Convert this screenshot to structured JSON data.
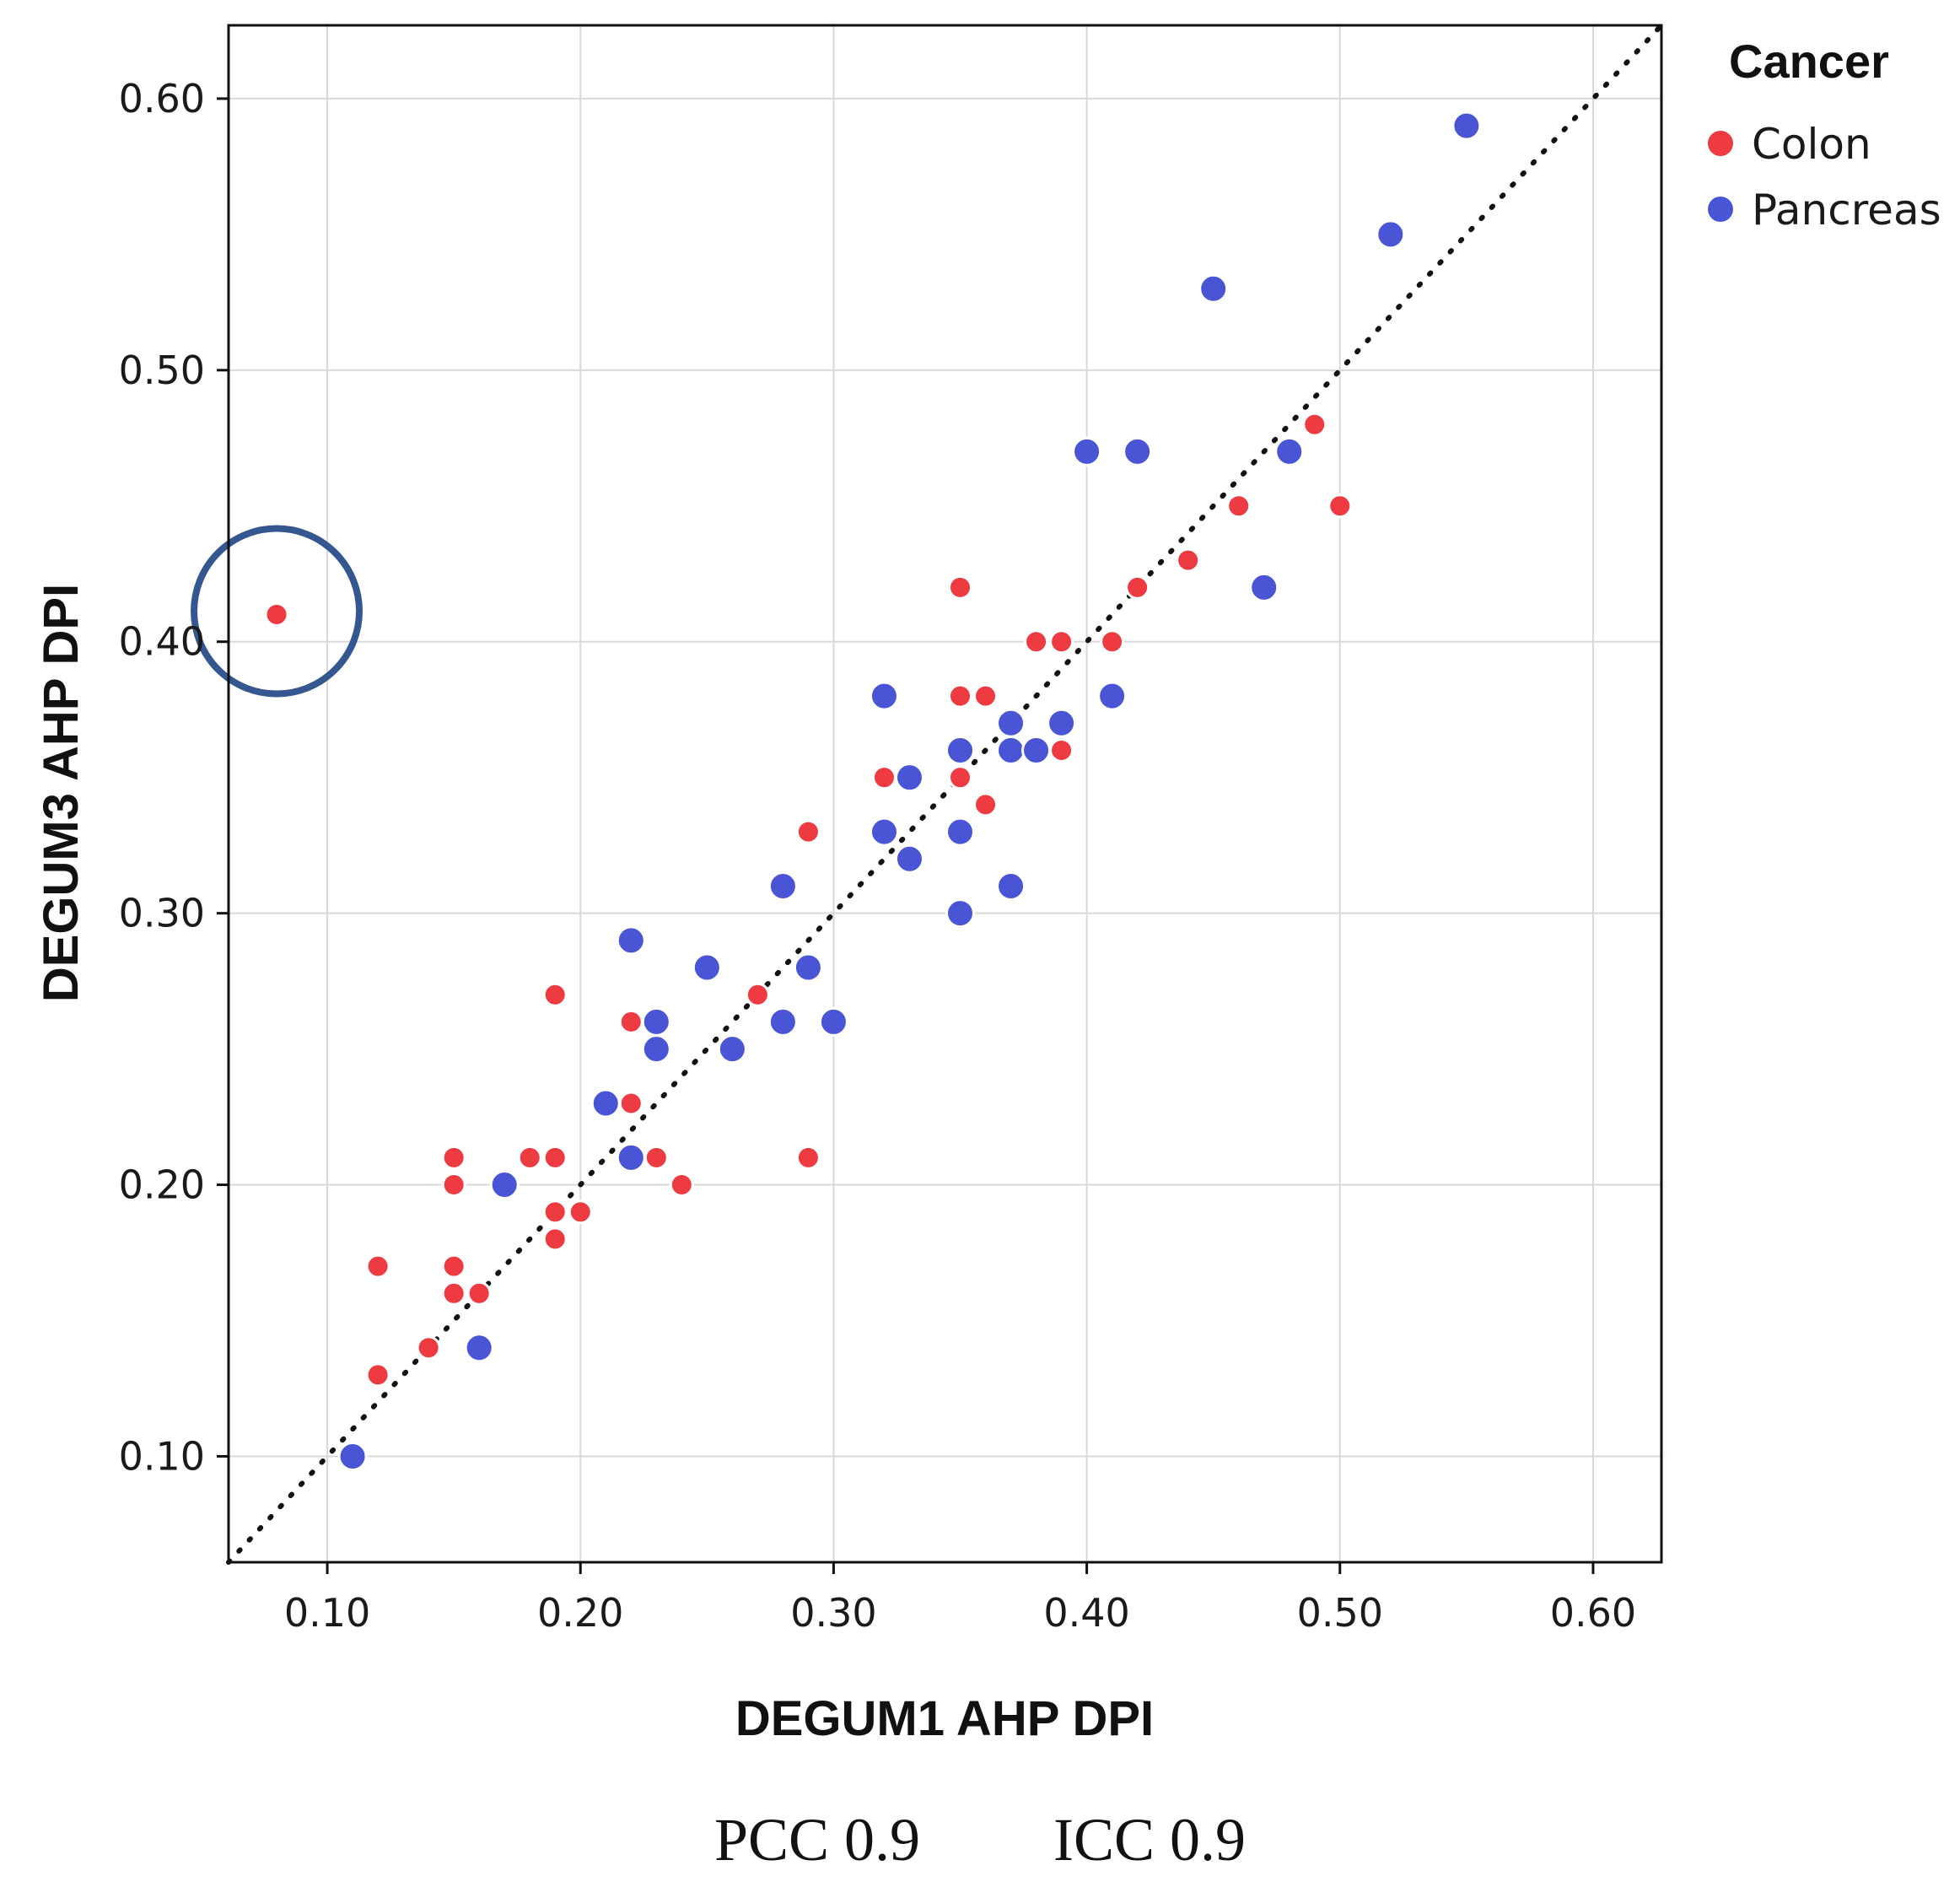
{
  "chart_data": {
    "type": "scatter",
    "xlabel": "DEGUM1 AHP DPI",
    "ylabel": "DEGUM3 AHP DPI",
    "xlim": [
      0.061,
      0.627
    ],
    "ylim": [
      0.061,
      0.627
    ],
    "x_ticks": [
      0.1,
      0.2,
      0.3,
      0.4,
      0.5,
      0.6
    ],
    "y_ticks": [
      0.1,
      0.2,
      0.3,
      0.4,
      0.5,
      0.6
    ],
    "x_tick_labels": [
      "0.10",
      "0.20",
      "0.30",
      "0.40",
      "0.50",
      "0.60"
    ],
    "y_tick_labels": [
      "0.10",
      "0.20",
      "0.30",
      "0.40",
      "0.50",
      "0.60"
    ],
    "grid": true,
    "reference_line": {
      "style": "dotted",
      "from": [
        0.061,
        0.061
      ],
      "to": [
        0.627,
        0.627
      ],
      "color": "#111111"
    },
    "highlight": {
      "x": 0.08,
      "y": 0.41,
      "color": "#35578f"
    },
    "legend": {
      "title": "Cancer",
      "position": "top-right",
      "entries": [
        "Colon",
        "Pancreas"
      ]
    },
    "series": [
      {
        "name": "Colon",
        "color": "#ee3b42",
        "points": [
          [
            0.08,
            0.41
          ],
          [
            0.12,
            0.17
          ],
          [
            0.12,
            0.13
          ],
          [
            0.14,
            0.14
          ],
          [
            0.15,
            0.21
          ],
          [
            0.15,
            0.2
          ],
          [
            0.15,
            0.17
          ],
          [
            0.15,
            0.16
          ],
          [
            0.16,
            0.16
          ],
          [
            0.18,
            0.21
          ],
          [
            0.19,
            0.21
          ],
          [
            0.19,
            0.19
          ],
          [
            0.19,
            0.18
          ],
          [
            0.19,
            0.27
          ],
          [
            0.2,
            0.19
          ],
          [
            0.22,
            0.26
          ],
          [
            0.22,
            0.23
          ],
          [
            0.23,
            0.21
          ],
          [
            0.24,
            0.2
          ],
          [
            0.27,
            0.27
          ],
          [
            0.29,
            0.33
          ],
          [
            0.29,
            0.21
          ],
          [
            0.32,
            0.35
          ],
          [
            0.35,
            0.42
          ],
          [
            0.35,
            0.38
          ],
          [
            0.35,
            0.35
          ],
          [
            0.36,
            0.38
          ],
          [
            0.36,
            0.34
          ],
          [
            0.38,
            0.4
          ],
          [
            0.39,
            0.4
          ],
          [
            0.39,
            0.36
          ],
          [
            0.41,
            0.4
          ],
          [
            0.42,
            0.42
          ],
          [
            0.44,
            0.43
          ],
          [
            0.46,
            0.45
          ],
          [
            0.49,
            0.48
          ],
          [
            0.5,
            0.45
          ]
        ]
      },
      {
        "name": "Pancreas",
        "color": "#4a55d6",
        "points": [
          [
            0.11,
            0.1
          ],
          [
            0.16,
            0.14
          ],
          [
            0.17,
            0.2
          ],
          [
            0.21,
            0.23
          ],
          [
            0.22,
            0.21
          ],
          [
            0.22,
            0.29
          ],
          [
            0.23,
            0.26
          ],
          [
            0.23,
            0.25
          ],
          [
            0.25,
            0.28
          ],
          [
            0.26,
            0.25
          ],
          [
            0.28,
            0.31
          ],
          [
            0.28,
            0.26
          ],
          [
            0.29,
            0.28
          ],
          [
            0.3,
            0.26
          ],
          [
            0.32,
            0.38
          ],
          [
            0.32,
            0.33
          ],
          [
            0.33,
            0.35
          ],
          [
            0.33,
            0.32
          ],
          [
            0.35,
            0.36
          ],
          [
            0.35,
            0.33
          ],
          [
            0.35,
            0.3
          ],
          [
            0.37,
            0.37
          ],
          [
            0.37,
            0.36
          ],
          [
            0.37,
            0.31
          ],
          [
            0.38,
            0.36
          ],
          [
            0.39,
            0.37
          ],
          [
            0.4,
            0.47
          ],
          [
            0.41,
            0.38
          ],
          [
            0.42,
            0.47
          ],
          [
            0.45,
            0.53
          ],
          [
            0.47,
            0.42
          ],
          [
            0.48,
            0.47
          ],
          [
            0.52,
            0.55
          ],
          [
            0.55,
            0.59
          ]
        ]
      }
    ]
  },
  "caption": {
    "pcc": "PCC 0.9",
    "icc": "ICC 0.9"
  }
}
